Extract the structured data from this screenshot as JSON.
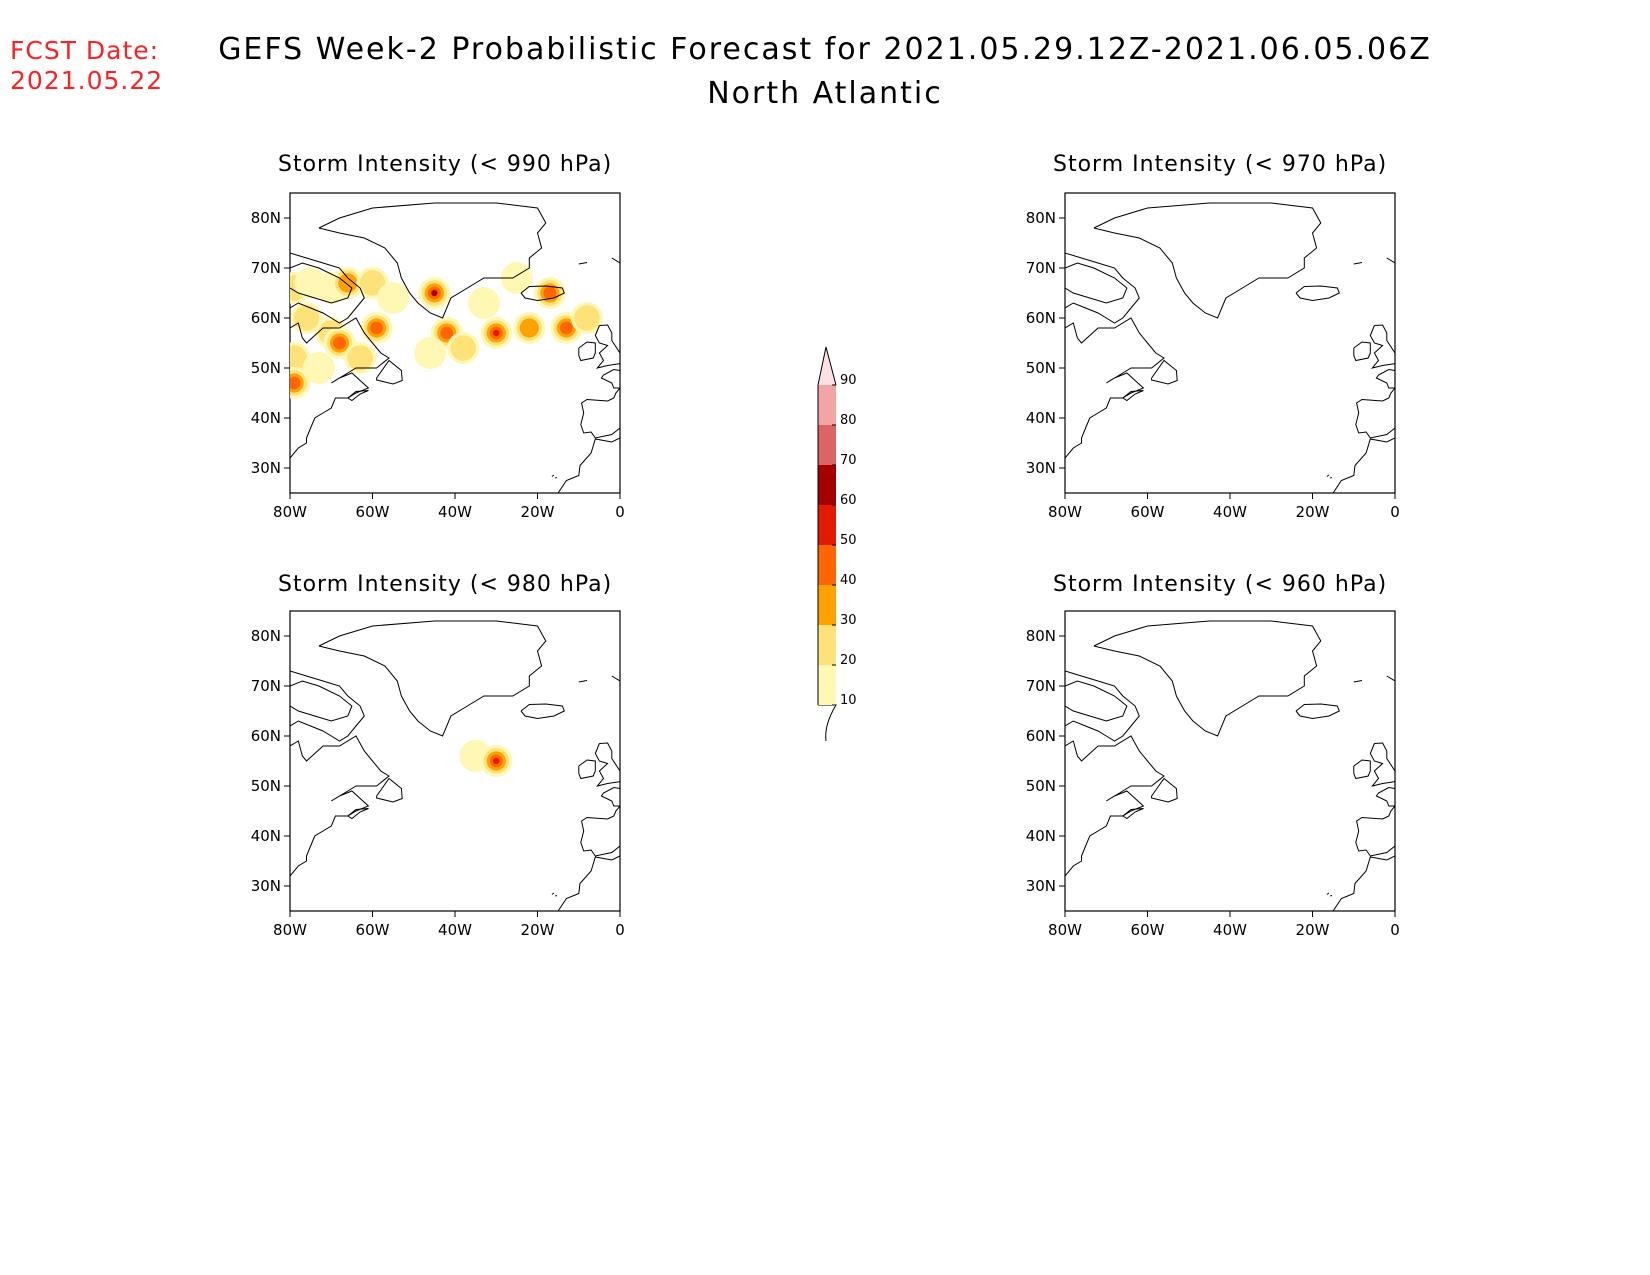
{
  "header": {
    "fcst_label": "FCST Date:",
    "fcst_date": "2021.05.22",
    "title": "GEFS Week-2 Probabilistic Forecast for 2021.05.29.12Z-2021.06.05.06Z",
    "subtitle": "North Atlantic"
  },
  "panels": [
    {
      "title": "Storm Intensity (< 990 hPa)"
    },
    {
      "title": "Storm Intensity (< 970 hPa)"
    },
    {
      "title": "Storm Intensity (< 980 hPa)"
    },
    {
      "title": "Storm Intensity (< 960 hPa)"
    }
  ],
  "axes": {
    "lat_labels": [
      "80N",
      "70N",
      "60N",
      "50N",
      "40N",
      "30N"
    ],
    "lon_labels": [
      "80W",
      "60W",
      "40W",
      "20W",
      "0"
    ]
  },
  "colorbar": {
    "labels": [
      "10",
      "20",
      "30",
      "40",
      "50",
      "60",
      "70",
      "80",
      "90"
    ],
    "colors": [
      "#fff8b4",
      "#fde27a",
      "#ffa200",
      "#ff6500",
      "#e31a00",
      "#a50000",
      "#dc6464",
      "#f3a4a4",
      "#fde0e0"
    ]
  },
  "map_extent": {
    "lon": [
      -80,
      0
    ],
    "lat": [
      25,
      85
    ]
  },
  "chart_data": {
    "type": "heatmap",
    "units": "probability (%)",
    "panels": [
      {
        "threshold": "< 990 hPa",
        "cells": [
          {
            "lon": -79,
            "lat": 66,
            "value": 20
          },
          {
            "lon": -75,
            "lat": 67,
            "value": 15
          },
          {
            "lon": -70,
            "lat": 66,
            "value": 15
          },
          {
            "lon": -66,
            "lat": 67,
            "value": 30
          },
          {
            "lon": -60,
            "lat": 67,
            "value": 20
          },
          {
            "lon": -55,
            "lat": 64,
            "value": 10
          },
          {
            "lon": -76,
            "lat": 60,
            "value": 25
          },
          {
            "lon": -70,
            "lat": 57,
            "value": 20
          },
          {
            "lon": -68,
            "lat": 55,
            "value": 40
          },
          {
            "lon": -63,
            "lat": 52,
            "value": 20
          },
          {
            "lon": -59,
            "lat": 58,
            "value": 40
          },
          {
            "lon": -79,
            "lat": 52,
            "value": 20
          },
          {
            "lon": -79,
            "lat": 47,
            "value": 40
          },
          {
            "lon": -73,
            "lat": 50,
            "value": 15
          },
          {
            "lon": -45,
            "lat": 65,
            "value": 60
          },
          {
            "lon": -42,
            "lat": 57,
            "value": 40
          },
          {
            "lon": -38,
            "lat": 54,
            "value": 20
          },
          {
            "lon": -30,
            "lat": 57,
            "value": 50
          },
          {
            "lon": -33,
            "lat": 63,
            "value": 15
          },
          {
            "lon": -25,
            "lat": 68,
            "value": 15
          },
          {
            "lon": -22,
            "lat": 58,
            "value": 30
          },
          {
            "lon": -17,
            "lat": 65,
            "value": 40
          },
          {
            "lon": -13,
            "lat": 58,
            "value": 40
          },
          {
            "lon": -8,
            "lat": 60,
            "value": 20
          },
          {
            "lon": -46,
            "lat": 53,
            "value": 10
          }
        ]
      },
      {
        "threshold": "< 970 hPa",
        "cells": []
      },
      {
        "threshold": "< 980 hPa",
        "cells": [
          {
            "lon": -35,
            "lat": 56,
            "value": 10
          },
          {
            "lon": -30,
            "lat": 55,
            "value": 50
          }
        ]
      },
      {
        "threshold": "< 960 hPa",
        "cells": []
      }
    ]
  }
}
